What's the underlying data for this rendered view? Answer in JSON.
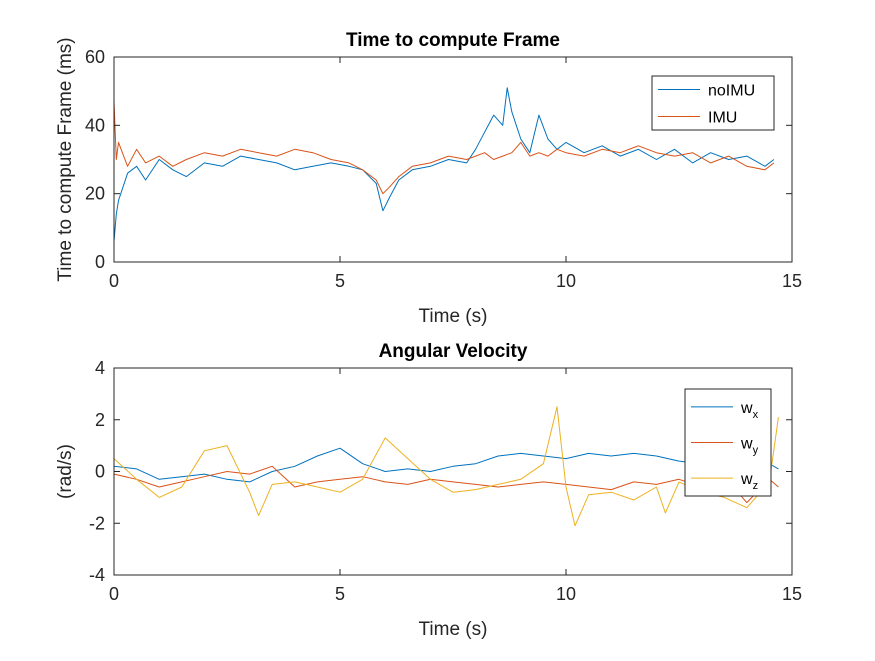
{
  "chart_data": [
    {
      "type": "line",
      "title": "Time to compute Frame",
      "xlabel": "Time (s)",
      "ylabel": "Time to compute Frame (ms)",
      "xlim": [
        0,
        15
      ],
      "ylim": [
        0,
        60
      ],
      "xticks": [
        "0",
        "5",
        "10",
        "15"
      ],
      "yticks": [
        "0",
        "20",
        "40",
        "60"
      ],
      "legend": "top-right",
      "series": [
        {
          "name": "noIMU",
          "color": "#0072BD",
          "x": [
            0,
            0.05,
            0.1,
            0.3,
            0.5,
            0.7,
            1.0,
            1.3,
            1.6,
            2.0,
            2.4,
            2.8,
            3.2,
            3.6,
            4.0,
            4.4,
            4.8,
            5.2,
            5.5,
            5.8,
            5.95,
            6.1,
            6.3,
            6.6,
            7.0,
            7.4,
            7.8,
            8.0,
            8.2,
            8.4,
            8.6,
            8.7,
            8.8,
            9.0,
            9.2,
            9.4,
            9.6,
            9.8,
            10.0,
            10.4,
            10.8,
            11.2,
            11.6,
            12.0,
            12.4,
            12.8,
            13.2,
            13.6,
            14.0,
            14.4,
            14.6
          ],
          "y": [
            6,
            14,
            18,
            26,
            28,
            24,
            30,
            27,
            25,
            29,
            28,
            31,
            30,
            29,
            27,
            28,
            29,
            28,
            27,
            23,
            15,
            19,
            24,
            27,
            28,
            30,
            29,
            33,
            38,
            43,
            40,
            51,
            44,
            36,
            32,
            43,
            36,
            33,
            35,
            32,
            34,
            31,
            33,
            30,
            33,
            29,
            32,
            30,
            31,
            28,
            30
          ]
        },
        {
          "name": "IMU",
          "color": "#D95319",
          "x": [
            0,
            0.05,
            0.1,
            0.3,
            0.5,
            0.7,
            1.0,
            1.3,
            1.6,
            2.0,
            2.4,
            2.8,
            3.2,
            3.6,
            4.0,
            4.4,
            4.8,
            5.2,
            5.5,
            5.8,
            5.95,
            6.1,
            6.3,
            6.6,
            7.0,
            7.4,
            7.8,
            8.0,
            8.2,
            8.4,
            8.6,
            8.8,
            9.0,
            9.2,
            9.4,
            9.6,
            9.8,
            10.0,
            10.4,
            10.8,
            11.2,
            11.6,
            12.0,
            12.4,
            12.8,
            13.2,
            13.6,
            14.0,
            14.4,
            14.6
          ],
          "y": [
            47,
            30,
            35,
            28,
            33,
            29,
            31,
            28,
            30,
            32,
            31,
            33,
            32,
            31,
            33,
            32,
            30,
            29,
            27,
            24,
            20,
            22,
            25,
            28,
            29,
            31,
            30,
            31,
            32,
            30,
            31,
            32,
            35,
            31,
            32,
            31,
            33,
            32,
            31,
            33,
            32,
            34,
            32,
            31,
            32,
            29,
            31,
            28,
            27,
            29
          ]
        }
      ]
    },
    {
      "type": "line",
      "title": "Angular Velocity",
      "xlabel": "Time (s)",
      "ylabel": "(rad/s)",
      "xlim": [
        0,
        15
      ],
      "ylim": [
        -4,
        4
      ],
      "xticks": [
        "0",
        "5",
        "10",
        "15"
      ],
      "yticks": [
        "-4",
        "-2",
        "0",
        "2",
        "4"
      ],
      "legend": "top-right",
      "series": [
        {
          "name": "w",
          "subscript": "x",
          "color": "#0072BD",
          "x": [
            0,
            0.5,
            1.0,
            1.5,
            2.0,
            2.5,
            3.0,
            3.5,
            4.0,
            4.5,
            5.0,
            5.5,
            6.0,
            6.5,
            7.0,
            7.5,
            8.0,
            8.5,
            9.0,
            9.5,
            10.0,
            10.5,
            11.0,
            11.5,
            12.0,
            12.5,
            13.0,
            13.5,
            14.0,
            14.5,
            14.7
          ],
          "y": [
            0.2,
            0.1,
            -0.3,
            -0.2,
            -0.1,
            -0.3,
            -0.4,
            0.0,
            0.2,
            0.6,
            0.9,
            0.3,
            0.0,
            0.1,
            0.0,
            0.2,
            0.3,
            0.6,
            0.7,
            0.6,
            0.5,
            0.7,
            0.6,
            0.7,
            0.6,
            0.4,
            0.3,
            0.6,
            0.8,
            0.3,
            0.1
          ]
        },
        {
          "name": "w",
          "subscript": "y",
          "color": "#D95319",
          "x": [
            0,
            0.5,
            1.0,
            1.5,
            2.0,
            2.5,
            3.0,
            3.5,
            4.0,
            4.5,
            5.0,
            5.5,
            6.0,
            6.5,
            7.0,
            7.5,
            8.0,
            8.5,
            9.0,
            9.5,
            10.0,
            10.5,
            11.0,
            11.5,
            12.0,
            12.5,
            13.0,
            13.5,
            14.0,
            14.5,
            14.7
          ],
          "y": [
            -0.1,
            -0.3,
            -0.6,
            -0.4,
            -0.2,
            0.0,
            -0.1,
            0.2,
            -0.6,
            -0.4,
            -0.3,
            -0.2,
            -0.4,
            -0.5,
            -0.3,
            -0.4,
            -0.5,
            -0.6,
            -0.5,
            -0.4,
            -0.5,
            -0.6,
            -0.7,
            -0.4,
            -0.5,
            -0.3,
            -0.6,
            -0.2,
            -1.2,
            -0.3,
            -0.6
          ]
        },
        {
          "name": "w",
          "subscript": "z",
          "color": "#EDB120",
          "x": [
            0,
            0.5,
            1.0,
            1.5,
            2.0,
            2.5,
            3.0,
            3.2,
            3.5,
            4.0,
            4.5,
            5.0,
            5.5,
            6.0,
            6.5,
            7.0,
            7.5,
            8.0,
            8.5,
            9.0,
            9.5,
            9.8,
            10.0,
            10.2,
            10.5,
            11.0,
            11.5,
            12.0,
            12.2,
            12.5,
            13.0,
            13.5,
            14.0,
            14.5,
            14.7
          ],
          "y": [
            0.5,
            -0.3,
            -1.0,
            -0.6,
            0.8,
            1.0,
            -0.8,
            -1.7,
            -0.5,
            -0.4,
            -0.6,
            -0.8,
            -0.3,
            1.3,
            0.5,
            -0.3,
            -0.8,
            -0.7,
            -0.5,
            -0.3,
            0.3,
            2.5,
            -0.6,
            -2.1,
            -0.9,
            -0.8,
            -1.1,
            -0.6,
            -1.6,
            -0.4,
            -0.8,
            -1.0,
            -1.4,
            -0.4,
            2.1
          ]
        }
      ]
    }
  ]
}
